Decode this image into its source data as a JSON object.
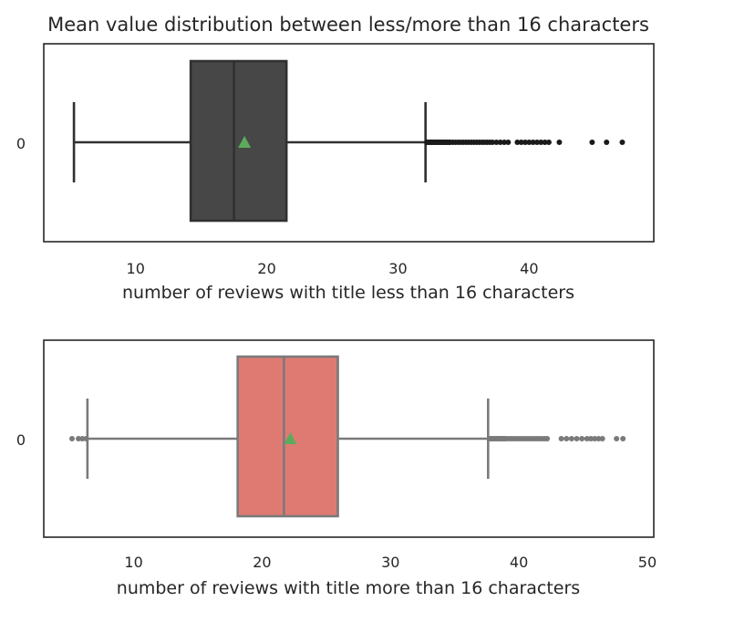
{
  "figure": {
    "title": "Mean value distribution between less/more than 16 characters"
  },
  "chart_data": [
    {
      "type": "boxplot",
      "orientation": "horizontal",
      "category_label": "0",
      "xlabel": "number of reviews with title less than 16 characters",
      "xlim": [
        3,
        49.5
      ],
      "xticks": [
        10,
        20,
        30,
        40
      ],
      "box": {
        "whisker_low": 5.3,
        "q1": 14.2,
        "median": 17.5,
        "q3": 21.5,
        "whisker_high": 32.1,
        "mean": 18.3
      },
      "outliers": [
        32.2,
        32.3,
        32.4,
        32.5,
        32.6,
        32.7,
        32.8,
        32.9,
        33.0,
        33.1,
        33.2,
        33.3,
        33.4,
        33.5,
        33.6,
        33.7,
        33.8,
        33.9,
        34.0,
        34.2,
        34.4,
        34.6,
        34.8,
        35.0,
        35.2,
        35.4,
        35.6,
        35.8,
        36.0,
        36.2,
        36.4,
        36.6,
        36.8,
        37.0,
        37.2,
        37.5,
        37.8,
        38.1,
        38.4,
        39.1,
        39.4,
        39.7,
        40.0,
        40.3,
        40.6,
        40.9,
        41.2,
        41.5,
        42.3,
        44.8,
        45.9,
        47.1
      ],
      "colors": {
        "box": "#474747",
        "lines": "#303030",
        "mean_marker": "#5cab5c",
        "outliers": "#1a1a1a"
      }
    },
    {
      "type": "boxplot",
      "orientation": "horizontal",
      "category_label": "0",
      "xlabel": "number of reviews with title more than 16 characters",
      "xlim": [
        3,
        50.5
      ],
      "xticks": [
        10,
        20,
        30,
        40,
        50
      ],
      "box": {
        "whisker_low": 6.4,
        "q1": 18.1,
        "median": 21.7,
        "q3": 25.9,
        "whisker_high": 37.6,
        "mean": 22.2
      },
      "outliers": [
        5.2,
        5.7,
        6.0,
        6.3,
        37.7,
        37.8,
        37.9,
        38.0,
        38.1,
        38.2,
        38.3,
        38.4,
        38.5,
        38.6,
        38.7,
        38.8,
        38.9,
        39.0,
        39.2,
        39.4,
        39.6,
        39.8,
        40.0,
        40.2,
        40.4,
        40.6,
        40.8,
        41.0,
        41.2,
        41.4,
        41.6,
        41.8,
        42.0,
        42.2,
        43.3,
        43.7,
        44.1,
        44.5,
        44.9,
        45.3,
        45.6,
        45.9,
        46.2,
        46.5,
        47.6,
        48.1
      ],
      "colors": {
        "box": "#df7a73",
        "lines": "#7a7a7a",
        "mean_marker": "#5cab5c",
        "outliers": "#7a7a7a"
      }
    }
  ]
}
